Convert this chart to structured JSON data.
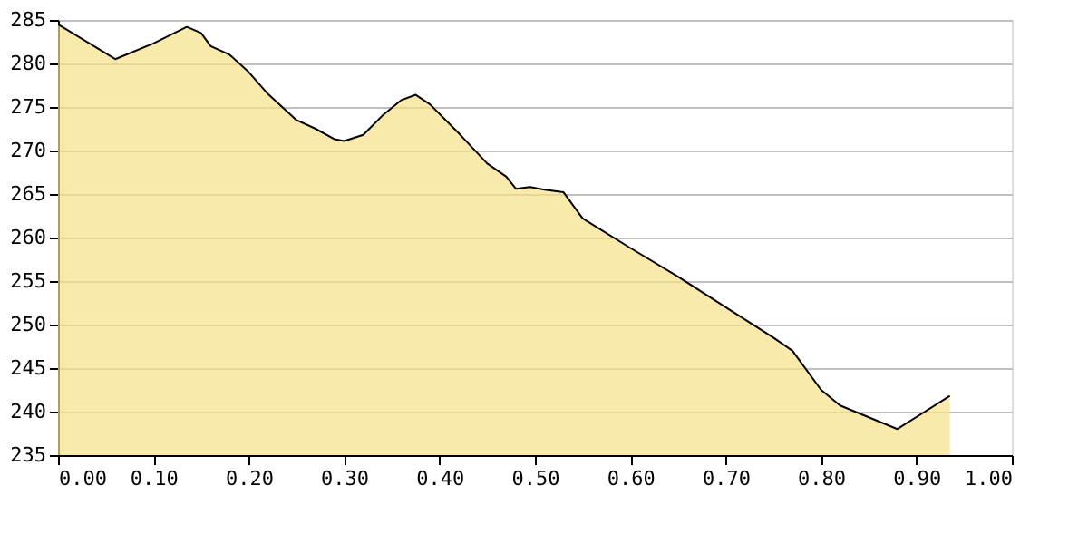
{
  "chart_data": {
    "type": "area",
    "color": "#f6e189",
    "x": [
      0,
      0.06,
      0.1,
      0.135,
      0.15,
      0.16,
      0.18,
      0.2,
      0.22,
      0.25,
      0.27,
      0.29,
      0.3,
      0.32,
      0.34,
      0.36,
      0.375,
      0.39,
      0.42,
      0.45,
      0.47,
      0.48,
      0.495,
      0.51,
      0.53,
      0.55,
      0.6,
      0.65,
      0.7,
      0.75,
      0.77,
      0.8,
      0.82,
      0.88,
      0.935
    ],
    "values": [
      284.5,
      280.5,
      282.3,
      284.2,
      283.5,
      282,
      281,
      279,
      276.5,
      273.5,
      272.5,
      271.3,
      271.1,
      271.8,
      274,
      275.8,
      276.4,
      275.3,
      272,
      268.5,
      267,
      265.6,
      265.8,
      265.5,
      265.2,
      262.2,
      258.8,
      255.5,
      252,
      248.5,
      247,
      242.5,
      240.7,
      238,
      241.8
    ],
    "xlim": [
      0,
      1
    ],
    "ylim": [
      235,
      285
    ],
    "xticks": [
      {
        "value": 0,
        "label": "0.00"
      },
      {
        "value": 0.1,
        "label": "0.10"
      },
      {
        "value": 0.2,
        "label": "0.20"
      },
      {
        "value": 0.3,
        "label": "0.30"
      },
      {
        "value": 0.4,
        "label": "0.40"
      },
      {
        "value": 0.5,
        "label": "0.50"
      },
      {
        "value": 0.6,
        "label": "0.60"
      },
      {
        "value": 0.7,
        "label": "0.70"
      },
      {
        "value": 0.8,
        "label": "0.80"
      },
      {
        "value": 0.9,
        "label": "0.90"
      },
      {
        "value": 1,
        "label": "1.00"
      }
    ],
    "yticks": [
      235,
      240,
      245,
      250,
      255,
      260,
      265,
      270,
      275,
      280,
      285
    ],
    "grid": "y"
  }
}
